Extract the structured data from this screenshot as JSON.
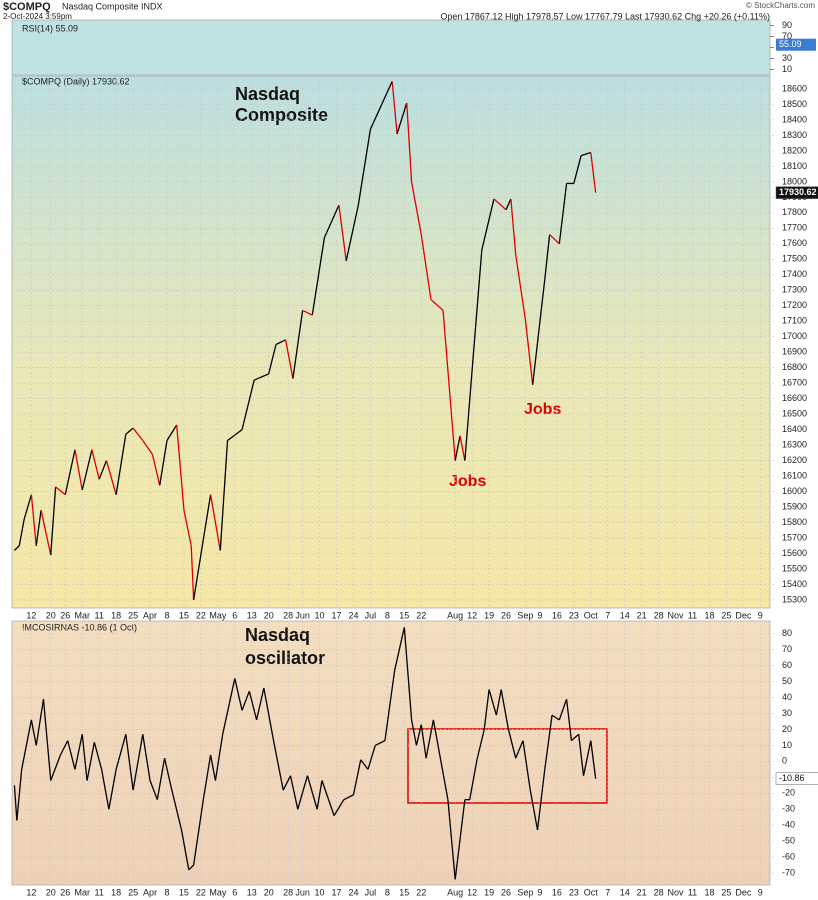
{
  "header": {
    "symbol": "$COMPQ",
    "name": "Nasdaq Composite INDX",
    "date": "2-Oct-2024 3:59pm",
    "quote": "Open 17867.12 High 17978.57 Low 17767.79 Last 17930.62 Chg +20.26 (+0.11%)",
    "credit": "© StockCharts.com"
  },
  "chart_data": [
    {
      "type": "indicator",
      "legend": "RSI(14) 55.09",
      "value": 55.09,
      "color": "#3a7cd0",
      "ylim": [
        0,
        100
      ],
      "yticks": [
        90,
        70,
        50,
        30,
        10
      ]
    },
    {
      "type": "line",
      "legend": "$COMPQ (Daily) 17930.62",
      "annotations": [
        {
          "text": "Nasdaq"
        },
        {
          "text": "Composite"
        },
        {
          "text": "Jobs"
        },
        {
          "text": "Jobs"
        }
      ],
      "color": "#000000",
      "down_color": "#e00000",
      "grid": true,
      "x": [
        "02-05",
        "02-07",
        "02-09",
        "02-12",
        "02-14",
        "02-16",
        "02-20",
        "02-22",
        "02-26",
        "03-01",
        "03-04",
        "03-08",
        "03-11",
        "03-14",
        "03-18",
        "03-22",
        "03-25",
        "03-29",
        "04-02",
        "04-05",
        "04-08",
        "04-12",
        "04-15",
        "04-18",
        "04-19",
        "04-23",
        "04-26",
        "04-30",
        "05-03",
        "05-09",
        "05-14",
        "05-20",
        "05-23",
        "05-27",
        "05-30",
        "06-03",
        "06-07",
        "06-12",
        "06-18",
        "06-21",
        "06-26",
        "07-01",
        "07-10",
        "07-12",
        "07-16",
        "07-18",
        "07-22",
        "07-26",
        "07-31",
        "08-05",
        "08-07",
        "08-09",
        "08-13",
        "08-16",
        "08-21",
        "08-26",
        "08-28",
        "08-30",
        "09-03",
        "09-06",
        "09-11",
        "09-13",
        "09-17",
        "09-20",
        "09-23",
        "09-26",
        "09-30",
        "10-02"
      ],
      "values": [
        15620,
        15650,
        15820,
        15980,
        15650,
        15880,
        15590,
        16030,
        15980,
        16270,
        16010,
        16270,
        16080,
        16200,
        15980,
        16370,
        16410,
        16330,
        16240,
        16040,
        16330,
        16430,
        15880,
        15650,
        15300,
        15690,
        15980,
        15620,
        16330,
        16400,
        16720,
        16760,
        16950,
        16980,
        16730,
        17170,
        17140,
        17640,
        17850,
        17490,
        17850,
        18340,
        18650,
        18310,
        18510,
        18000,
        17660,
        17240,
        17170,
        16200,
        16360,
        16200,
        16980,
        17560,
        17890,
        17820,
        17890,
        17530,
        17110,
        16690,
        17370,
        17660,
        17600,
        17990,
        17990,
        18170,
        18190,
        17930.62
      ],
      "xlim": [
        "02-04",
        "12-13"
      ],
      "ylim": [
        15248,
        18684
      ],
      "yticks": [
        15300,
        15400,
        15500,
        15600,
        15700,
        15800,
        15900,
        16000,
        16100,
        16200,
        16300,
        16400,
        16500,
        16600,
        16700,
        16800,
        16900,
        17000,
        17100,
        17200,
        17300,
        17400,
        17500,
        17600,
        17700,
        17800,
        17900,
        18000,
        18100,
        18200,
        18300,
        18400,
        18500,
        18600
      ],
      "xticks": [
        {
          "value": "02-12",
          "label": "12"
        },
        {
          "value": "02-20",
          "label": "20"
        },
        {
          "value": "02-26",
          "label": "26"
        },
        {
          "value": "03-04",
          "label": "Mar"
        },
        {
          "value": "03-11",
          "label": "11"
        },
        {
          "value": "03-18",
          "label": "18"
        },
        {
          "value": "03-25",
          "label": "25"
        },
        {
          "value": "04-01",
          "label": "Apr"
        },
        {
          "value": "04-08",
          "label": "8"
        },
        {
          "value": "04-15",
          "label": "15"
        },
        {
          "value": "04-22",
          "label": "22"
        },
        {
          "value": "04-29",
          "label": "May"
        },
        {
          "value": "05-06",
          "label": "6"
        },
        {
          "value": "05-13",
          "label": "13"
        },
        {
          "value": "05-20",
          "label": "20"
        },
        {
          "value": "05-28",
          "label": "28"
        },
        {
          "value": "06-03",
          "label": "Jun"
        },
        {
          "value": "06-10",
          "label": "10"
        },
        {
          "value": "06-17",
          "label": "17"
        },
        {
          "value": "06-24",
          "label": "24"
        },
        {
          "value": "07-01",
          "label": "Jul"
        },
        {
          "value": "07-08",
          "label": "8"
        },
        {
          "value": "07-15",
          "label": "15"
        },
        {
          "value": "07-22",
          "label": "22"
        },
        {
          "value": "08-05",
          "label": "Aug"
        },
        {
          "value": "08-12",
          "label": "12"
        },
        {
          "value": "08-19",
          "label": "19"
        },
        {
          "value": "08-26",
          "label": "26"
        },
        {
          "value": "09-03",
          "label": "Sep"
        },
        {
          "value": "09-09",
          "label": "9"
        },
        {
          "value": "09-16",
          "label": "16"
        },
        {
          "value": "09-23",
          "label": "23"
        },
        {
          "value": "09-30",
          "label": "Oct"
        },
        {
          "value": "10-07",
          "label": "7"
        },
        {
          "value": "10-14",
          "label": "14"
        },
        {
          "value": "10-21",
          "label": "21"
        },
        {
          "value": "10-28",
          "label": "28"
        },
        {
          "value": "11-04",
          "label": "Nov"
        },
        {
          "value": "11-11",
          "label": "11"
        },
        {
          "value": "11-18",
          "label": "18"
        },
        {
          "value": "11-25",
          "label": "25"
        },
        {
          "value": "12-02",
          "label": "Dec"
        },
        {
          "value": "12-09",
          "label": "9"
        }
      ]
    },
    {
      "type": "line",
      "legend": "!MCOSIRNAS -10.86 (1 Oct)",
      "annotations": [
        {
          "text": "Nasdaq"
        },
        {
          "text": "oscillator"
        }
      ],
      "color": "#000000",
      "grid": true,
      "x": [
        "02-05",
        "02-06",
        "02-08",
        "02-12",
        "02-14",
        "02-17",
        "02-20",
        "02-24",
        "02-27",
        "03-01",
        "03-04",
        "03-06",
        "03-09",
        "03-12",
        "03-15",
        "03-18",
        "03-22",
        "03-25",
        "03-29",
        "04-01",
        "04-04",
        "04-07",
        "04-10",
        "04-14",
        "04-17",
        "04-19",
        "04-23",
        "04-26",
        "04-28",
        "05-01",
        "05-06",
        "05-09",
        "05-12",
        "05-15",
        "05-18",
        "05-22",
        "05-26",
        "05-29",
        "06-01",
        "06-05",
        "06-09",
        "06-11",
        "06-16",
        "06-20",
        "06-24",
        "06-27",
        "06-30",
        "07-03",
        "07-07",
        "07-11",
        "07-15",
        "07-18",
        "07-20",
        "07-22",
        "07-24",
        "07-27",
        "07-30",
        "08-02",
        "08-05",
        "08-07",
        "08-09",
        "08-11",
        "08-14",
        "08-17",
        "08-19",
        "08-22",
        "08-24",
        "08-27",
        "08-30",
        "09-02",
        "09-05",
        "09-08",
        "09-11",
        "09-14",
        "09-17",
        "09-20",
        "09-22",
        "09-25",
        "09-27",
        "09-30",
        "10-02"
      ],
      "values": [
        -15,
        -37,
        -5,
        26,
        10,
        39,
        -12,
        4,
        13,
        -5,
        17,
        -12,
        12,
        -5,
        -30,
        -5,
        17,
        -18,
        17,
        -12,
        -24,
        2,
        -18,
        -43,
        -68,
        -65,
        -24,
        4,
        -12,
        17,
        52,
        32,
        44,
        26,
        46,
        13,
        -18,
        -9,
        -30,
        -9,
        -30,
        -12,
        -34,
        -24,
        -21,
        1,
        -5,
        10,
        13,
        57,
        84,
        26,
        10,
        23,
        2,
        26,
        1,
        -24,
        -74,
        -49,
        -24,
        -24,
        1,
        20,
        45,
        29,
        45,
        20,
        2,
        13,
        -18,
        -43,
        -5,
        29,
        26,
        39,
        13,
        17,
        -9,
        13,
        -10.86
      ],
      "xlim": [
        "02-04",
        "12-13"
      ],
      "ylim": [
        -77.5,
        88
      ],
      "yticks": [
        -70,
        -60,
        -50,
        -40,
        -30,
        -20,
        -10,
        0,
        10,
        20,
        30,
        40,
        50,
        60,
        70,
        80
      ],
      "xticks": [
        {
          "value": "02-12",
          "label": "12"
        },
        {
          "value": "02-20",
          "label": "20"
        },
        {
          "value": "02-26",
          "label": "26"
        },
        {
          "value": "03-04",
          "label": "Mar"
        },
        {
          "value": "03-11",
          "label": "11"
        },
        {
          "value": "03-18",
          "label": "18"
        },
        {
          "value": "03-25",
          "label": "25"
        },
        {
          "value": "04-01",
          "label": "Apr"
        },
        {
          "value": "04-08",
          "label": "8"
        },
        {
          "value": "04-15",
          "label": "15"
        },
        {
          "value": "04-22",
          "label": "22"
        },
        {
          "value": "04-29",
          "label": "May"
        },
        {
          "value": "05-06",
          "label": "6"
        },
        {
          "value": "05-13",
          "label": "13"
        },
        {
          "value": "05-20",
          "label": "20"
        },
        {
          "value": "05-28",
          "label": "28"
        },
        {
          "value": "06-03",
          "label": "Jun"
        },
        {
          "value": "06-10",
          "label": "10"
        },
        {
          "value": "06-17",
          "label": "17"
        },
        {
          "value": "06-24",
          "label": "24"
        },
        {
          "value": "07-01",
          "label": "Jul"
        },
        {
          "value": "07-08",
          "label": "8"
        },
        {
          "value": "07-15",
          "label": "15"
        },
        {
          "value": "07-22",
          "label": "22"
        },
        {
          "value": "08-05",
          "label": "Aug"
        },
        {
          "value": "08-12",
          "label": "12"
        },
        {
          "value": "08-19",
          "label": "19"
        },
        {
          "value": "08-26",
          "label": "26"
        },
        {
          "value": "09-03",
          "label": "Sep"
        },
        {
          "value": "09-09",
          "label": "9"
        },
        {
          "value": "09-16",
          "label": "16"
        },
        {
          "value": "09-23",
          "label": "23"
        },
        {
          "value": "09-30",
          "label": "Oct"
        },
        {
          "value": "10-07",
          "label": "7"
        },
        {
          "value": "10-14",
          "label": "14"
        },
        {
          "value": "10-21",
          "label": "21"
        },
        {
          "value": "10-28",
          "label": "28"
        },
        {
          "value": "11-04",
          "label": "Nov"
        },
        {
          "value": "11-11",
          "label": "11"
        },
        {
          "value": "11-18",
          "label": "18"
        },
        {
          "value": "11-25",
          "label": "25"
        },
        {
          "value": "12-02",
          "label": "Dec"
        },
        {
          "value": "12-09",
          "label": "9"
        }
      ]
    }
  ]
}
